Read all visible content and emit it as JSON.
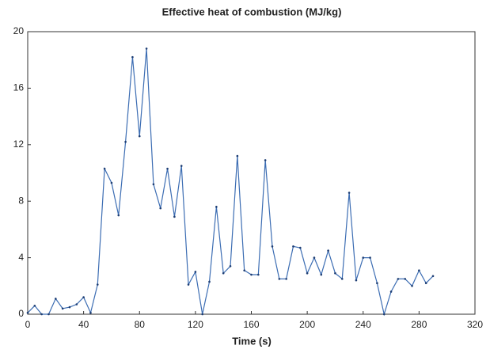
{
  "chart_data": {
    "type": "line",
    "title": "Effective heat of combustion (MJ/kg)",
    "x_label": "Time (s)",
    "x": [
      0,
      5,
      10,
      15,
      20,
      25,
      30,
      35,
      40,
      45,
      50,
      55,
      60,
      65,
      70,
      75,
      80,
      85,
      90,
      95,
      100,
      105,
      110,
      115,
      120,
      125,
      130,
      135,
      140,
      145,
      150,
      155,
      160,
      165,
      170,
      175,
      180,
      185,
      190,
      195,
      200,
      205,
      210,
      215,
      220,
      225,
      230,
      235,
      240,
      245,
      250,
      255,
      260,
      265,
      270,
      275,
      280,
      285,
      290
    ],
    "series": [
      {
        "name": "Effective heat of combustion",
        "color": "#3c6db3",
        "values": [
          0.1,
          0.6,
          0,
          0,
          1.1,
          0.4,
          0.5,
          0.7,
          1.2,
          0.1,
          2.1,
          10.3,
          9.3,
          7.0,
          12.2,
          18.2,
          12.6,
          18.8,
          9.2,
          7.5,
          10.3,
          6.9,
          10.5,
          2.1,
          3.0,
          0.0,
          2.3,
          7.6,
          2.9,
          3.4,
          11.2,
          3.1,
          2.8,
          2.8,
          10.9,
          4.8,
          2.5,
          2.5,
          4.8,
          4.7,
          2.9,
          4.0,
          2.8,
          4.5,
          2.9,
          2.5,
          8.6,
          2.4,
          4.0,
          4.0,
          2.2,
          0.0,
          1.6,
          2.5,
          2.5,
          2.0,
          3.1,
          2.2,
          2.7
        ]
      }
    ],
    "xlim": [
      0,
      320
    ],
    "xticks": [
      0,
      40,
      80,
      120,
      160,
      200,
      240,
      280,
      320
    ],
    "ylim": [
      0,
      20
    ],
    "yticks": [
      0,
      4,
      8,
      12,
      16,
      20
    ],
    "grid": false
  }
}
